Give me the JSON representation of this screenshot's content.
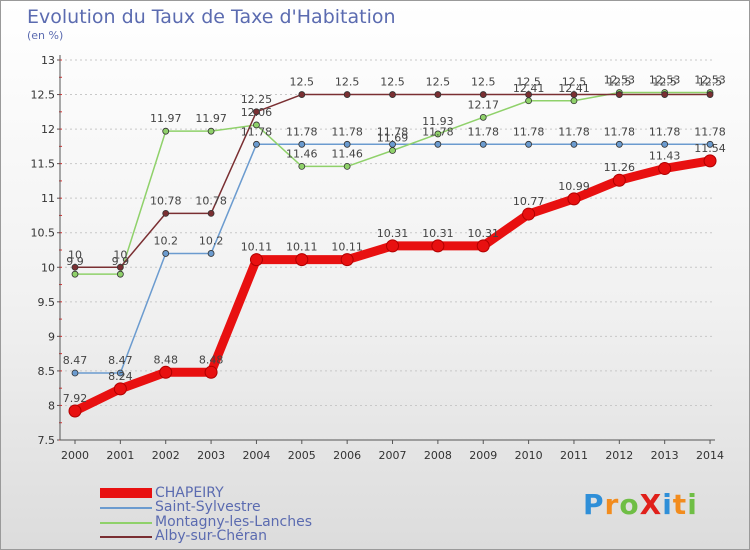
{
  "title": "Evolution du Taux de Taxe d'Habitation",
  "unit_label": "(en %)",
  "logo": {
    "text": "ProXiti",
    "letters": [
      {
        "ch": "P",
        "color": "#2f8fd8"
      },
      {
        "ch": "r",
        "color": "#f28c1e"
      },
      {
        "ch": "o",
        "color": "#6fbe45"
      },
      {
        "ch": "X",
        "color": "#e0201b"
      },
      {
        "ch": "i",
        "color": "#2f8fd8"
      },
      {
        "ch": "t",
        "color": "#f28c1e"
      },
      {
        "ch": "i",
        "color": "#6fbe45"
      }
    ]
  },
  "chart_data": {
    "type": "line",
    "title": "Evolution du Taux de Taxe d'Habitation",
    "ylabel": "(en %)",
    "xlabel": "",
    "categories": [
      "2000",
      "2001",
      "2002",
      "2003",
      "2004",
      "2005",
      "2006",
      "2007",
      "2008",
      "2009",
      "2010",
      "2011",
      "2012",
      "2013",
      "2014"
    ],
    "ylim": [
      7.5,
      13
    ],
    "yticks": [
      "7.5",
      "8",
      "8.5",
      "9",
      "9.5",
      "10",
      "10.5",
      "11",
      "11.5",
      "12",
      "12.5",
      "13"
    ],
    "grid": "horizontal dashed",
    "legend_position": "bottom-left",
    "series": [
      {
        "name": "CHAPEIRY",
        "color": "#e81010",
        "width": "thick",
        "values": [
          7.92,
          8.24,
          8.48,
          8.48,
          10.11,
          10.11,
          10.11,
          10.31,
          10.31,
          10.31,
          10.77,
          10.99,
          11.26,
          11.43,
          11.54
        ],
        "labels": [
          "7.92",
          "8.24",
          "8.48",
          "8.48",
          "10.11",
          "10.11",
          "10.11",
          "10.31",
          "10.31",
          "10.31",
          "10.77",
          "10.99",
          "11.26",
          "11.43",
          "11.54"
        ]
      },
      {
        "name": "Saint-Sylvestre",
        "color": "#6b9bcf",
        "width": "thin",
        "values": [
          8.47,
          8.47,
          10.2,
          10.2,
          11.78,
          11.78,
          11.78,
          11.78,
          11.78,
          11.78,
          11.78,
          11.78,
          11.78,
          11.78,
          11.78
        ],
        "labels": [
          "8.47",
          "8.47",
          "10.2",
          "10.2",
          "11.78",
          "11.78",
          "11.78",
          "11.78",
          "11.78",
          "11.78",
          "11.78",
          "11.78",
          "11.78",
          "11.78",
          "11.78"
        ]
      },
      {
        "name": "Montagny-les-Lanches",
        "color": "#8fd16a",
        "width": "thin",
        "values": [
          9.9,
          9.9,
          11.97,
          11.97,
          12.06,
          11.46,
          11.46,
          11.69,
          11.93,
          12.17,
          12.41,
          12.41,
          12.53,
          12.53,
          12.53
        ],
        "labels": [
          "9.9",
          "9.9",
          "11.97",
          "11.97",
          "12.06",
          "11.46",
          "11.46",
          "11.69",
          "11.93",
          "12.17",
          "12.41",
          "12.41",
          "12.53",
          "12.53",
          "12.53"
        ]
      },
      {
        "name": "Alby-sur-Chéran",
        "color": "#7a2f32",
        "width": "thin",
        "values": [
          10,
          10,
          10.78,
          10.78,
          12.25,
          12.5,
          12.5,
          12.5,
          12.5,
          12.5,
          12.5,
          12.5,
          12.5,
          12.5,
          12.5
        ],
        "labels": [
          "10",
          "10",
          "10.78",
          "10.78",
          "12.25",
          "12.5",
          "12.5",
          "12.5",
          "12.5",
          "12.5",
          "12.5",
          "12.5",
          "12.5",
          "12.5",
          "12.5"
        ]
      }
    ]
  }
}
